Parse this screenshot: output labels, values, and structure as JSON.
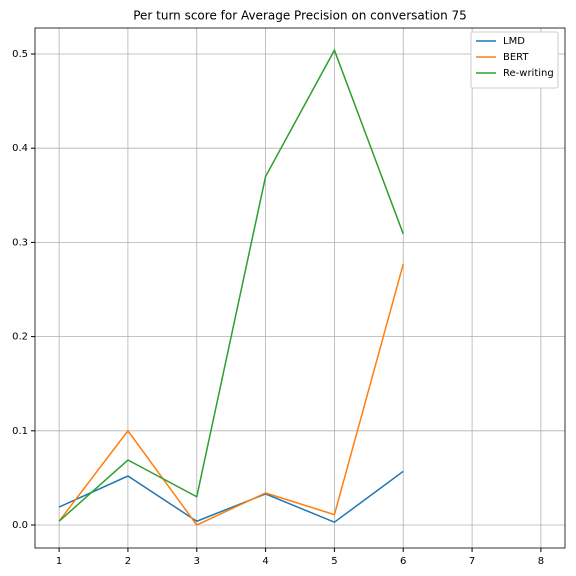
{
  "chart_data": {
    "type": "line",
    "title": "Per turn score for Average Precision on conversation 75",
    "x": [
      1,
      2,
      3,
      4,
      5,
      6
    ],
    "series": [
      {
        "name": "LMD",
        "color": "#1f77b4",
        "values": [
          0.019,
          0.052,
          0.004,
          0.033,
          0.003,
          0.057
        ]
      },
      {
        "name": "BERT",
        "color": "#ff7f0e",
        "values": [
          0.004,
          0.1,
          0.0,
          0.034,
          0.011,
          0.277
        ]
      },
      {
        "name": "Re-writing",
        "color": "#2ca02c",
        "values": [
          0.004,
          0.069,
          0.03,
          0.37,
          0.504,
          0.309
        ]
      }
    ],
    "xlim": [
      0.65,
      8.35
    ],
    "xticks": [
      1,
      2,
      3,
      4,
      5,
      6,
      7,
      8
    ],
    "ylim": [
      -0.0244,
      0.5276
    ],
    "yticks": [
      {
        "value": 0,
        "label": "0.0"
      },
      0.1,
      0.2,
      0.3,
      0.4,
      0.5
    ],
    "grid": true,
    "legend": "upper right"
  }
}
